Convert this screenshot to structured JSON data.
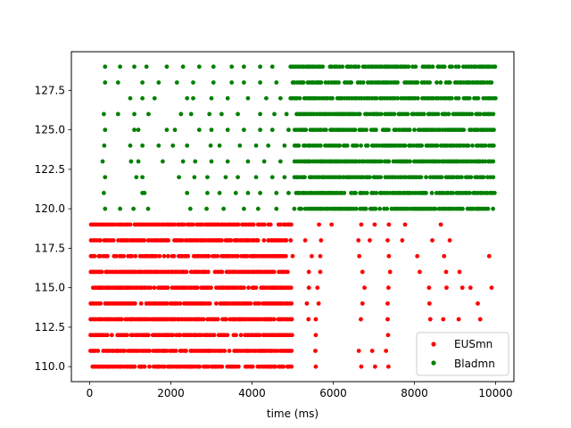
{
  "chart_data": {
    "type": "scatter",
    "title": "",
    "xlabel": "time (ms)",
    "ylabel": "",
    "xlim": [
      -450,
      10450
    ],
    "ylim": [
      109.05,
      129.95
    ],
    "grid": false,
    "legend_position": "lower-right",
    "x_ticks": [
      0,
      2000,
      4000,
      6000,
      8000,
      10000
    ],
    "x_tick_labels": [
      "0",
      "2000",
      "4000",
      "6000",
      "8000",
      "10000"
    ],
    "y_ticks": [
      110.0,
      112.5,
      115.0,
      117.5,
      120.0,
      122.5,
      125.0,
      127.5
    ],
    "y_tick_labels": [
      "110.0",
      "112.5",
      "115.0",
      "117.5",
      "120.0",
      "122.5",
      "125.0",
      "127.5"
    ],
    "series": [
      {
        "name": "EUSmn",
        "color": "#ff0000",
        "neurons": [
          110,
          111,
          112,
          113,
          114,
          115,
          116,
          117,
          118,
          119
        ],
        "dense_interval_ms": [
          0,
          5000
        ],
        "dense_isi_ms": 50,
        "sparse_spikes_by_neuron": {
          "110": [
            5570,
            6690,
            7030,
            7360
          ],
          "111": [
            5560,
            6630,
            6960,
            7300
          ],
          "112": [
            5570,
            7350
          ],
          "113": [
            5390,
            5570,
            6680,
            7340,
            8390,
            8710,
            9090,
            9620
          ],
          "114": [
            5350,
            5640,
            6720,
            7340,
            8370,
            9560
          ],
          "115": [
            5400,
            5610,
            6770,
            7360,
            8360,
            8790,
            9180,
            9380,
            9900
          ],
          "116": [
            5400,
            5680,
            6720,
            7400,
            8130,
            8780,
            9110
          ],
          "117": [
            5470,
            5680,
            6640,
            7370,
            8070,
            8730,
            9840
          ],
          "118": [
            5310,
            5700,
            6620,
            6900,
            7340,
            7700,
            8440,
            8870
          ],
          "119": [
            5650,
            5960,
            6690,
            7020,
            7370,
            7770,
            8650
          ]
        }
      },
      {
        "name": "Bladmn",
        "color": "#008000",
        "neurons": [
          120,
          121,
          122,
          123,
          124,
          125,
          126,
          127,
          128,
          129
        ],
        "dense_interval_ms": [
          5000,
          10000
        ],
        "dense_isi_ms": 55,
        "sparse_spikes_by_neuron": {
          "120": [
            380,
            750,
            1080,
            1440,
            2480,
            2880,
            3300,
            3800,
            4150,
            4600
          ],
          "121": [
            350,
            1300,
            1350,
            2400,
            2900,
            3200,
            3600,
            3900,
            4200,
            4600,
            4900
          ],
          "122": [
            380,
            1150,
            1300,
            2200,
            2580,
            2900,
            3350,
            3650,
            4100,
            4500,
            4800
          ],
          "123": [
            320,
            1020,
            1200,
            1800,
            2300,
            2600,
            3000,
            3400,
            3900,
            4300,
            4700
          ],
          "124": [
            360,
            1000,
            1300,
            1700,
            2050,
            2400,
            2980,
            3200,
            3700,
            4100,
            4400,
            4800
          ],
          "125": [
            380,
            1100,
            1200,
            1900,
            2100,
            2700,
            3000,
            3400,
            3800,
            4200,
            4500,
            4900
          ],
          "126": [
            350,
            700,
            1100,
            1450,
            2250,
            2500,
            2950,
            3250,
            3650,
            4200,
            4550,
            4850
          ],
          "127": [
            1000,
            1300,
            1600,
            2400,
            2550,
            3000,
            3400,
            3900,
            4350,
            4700,
            4950
          ],
          "128": [
            380,
            700,
            1300,
            1700,
            2150,
            2550,
            3050,
            3500,
            3800,
            4200,
            4600
          ],
          "129": [
            380,
            750,
            1100,
            1400,
            1900,
            2300,
            2700,
            3050,
            3500,
            3800,
            4200,
            4500,
            4950
          ]
        }
      }
    ]
  }
}
